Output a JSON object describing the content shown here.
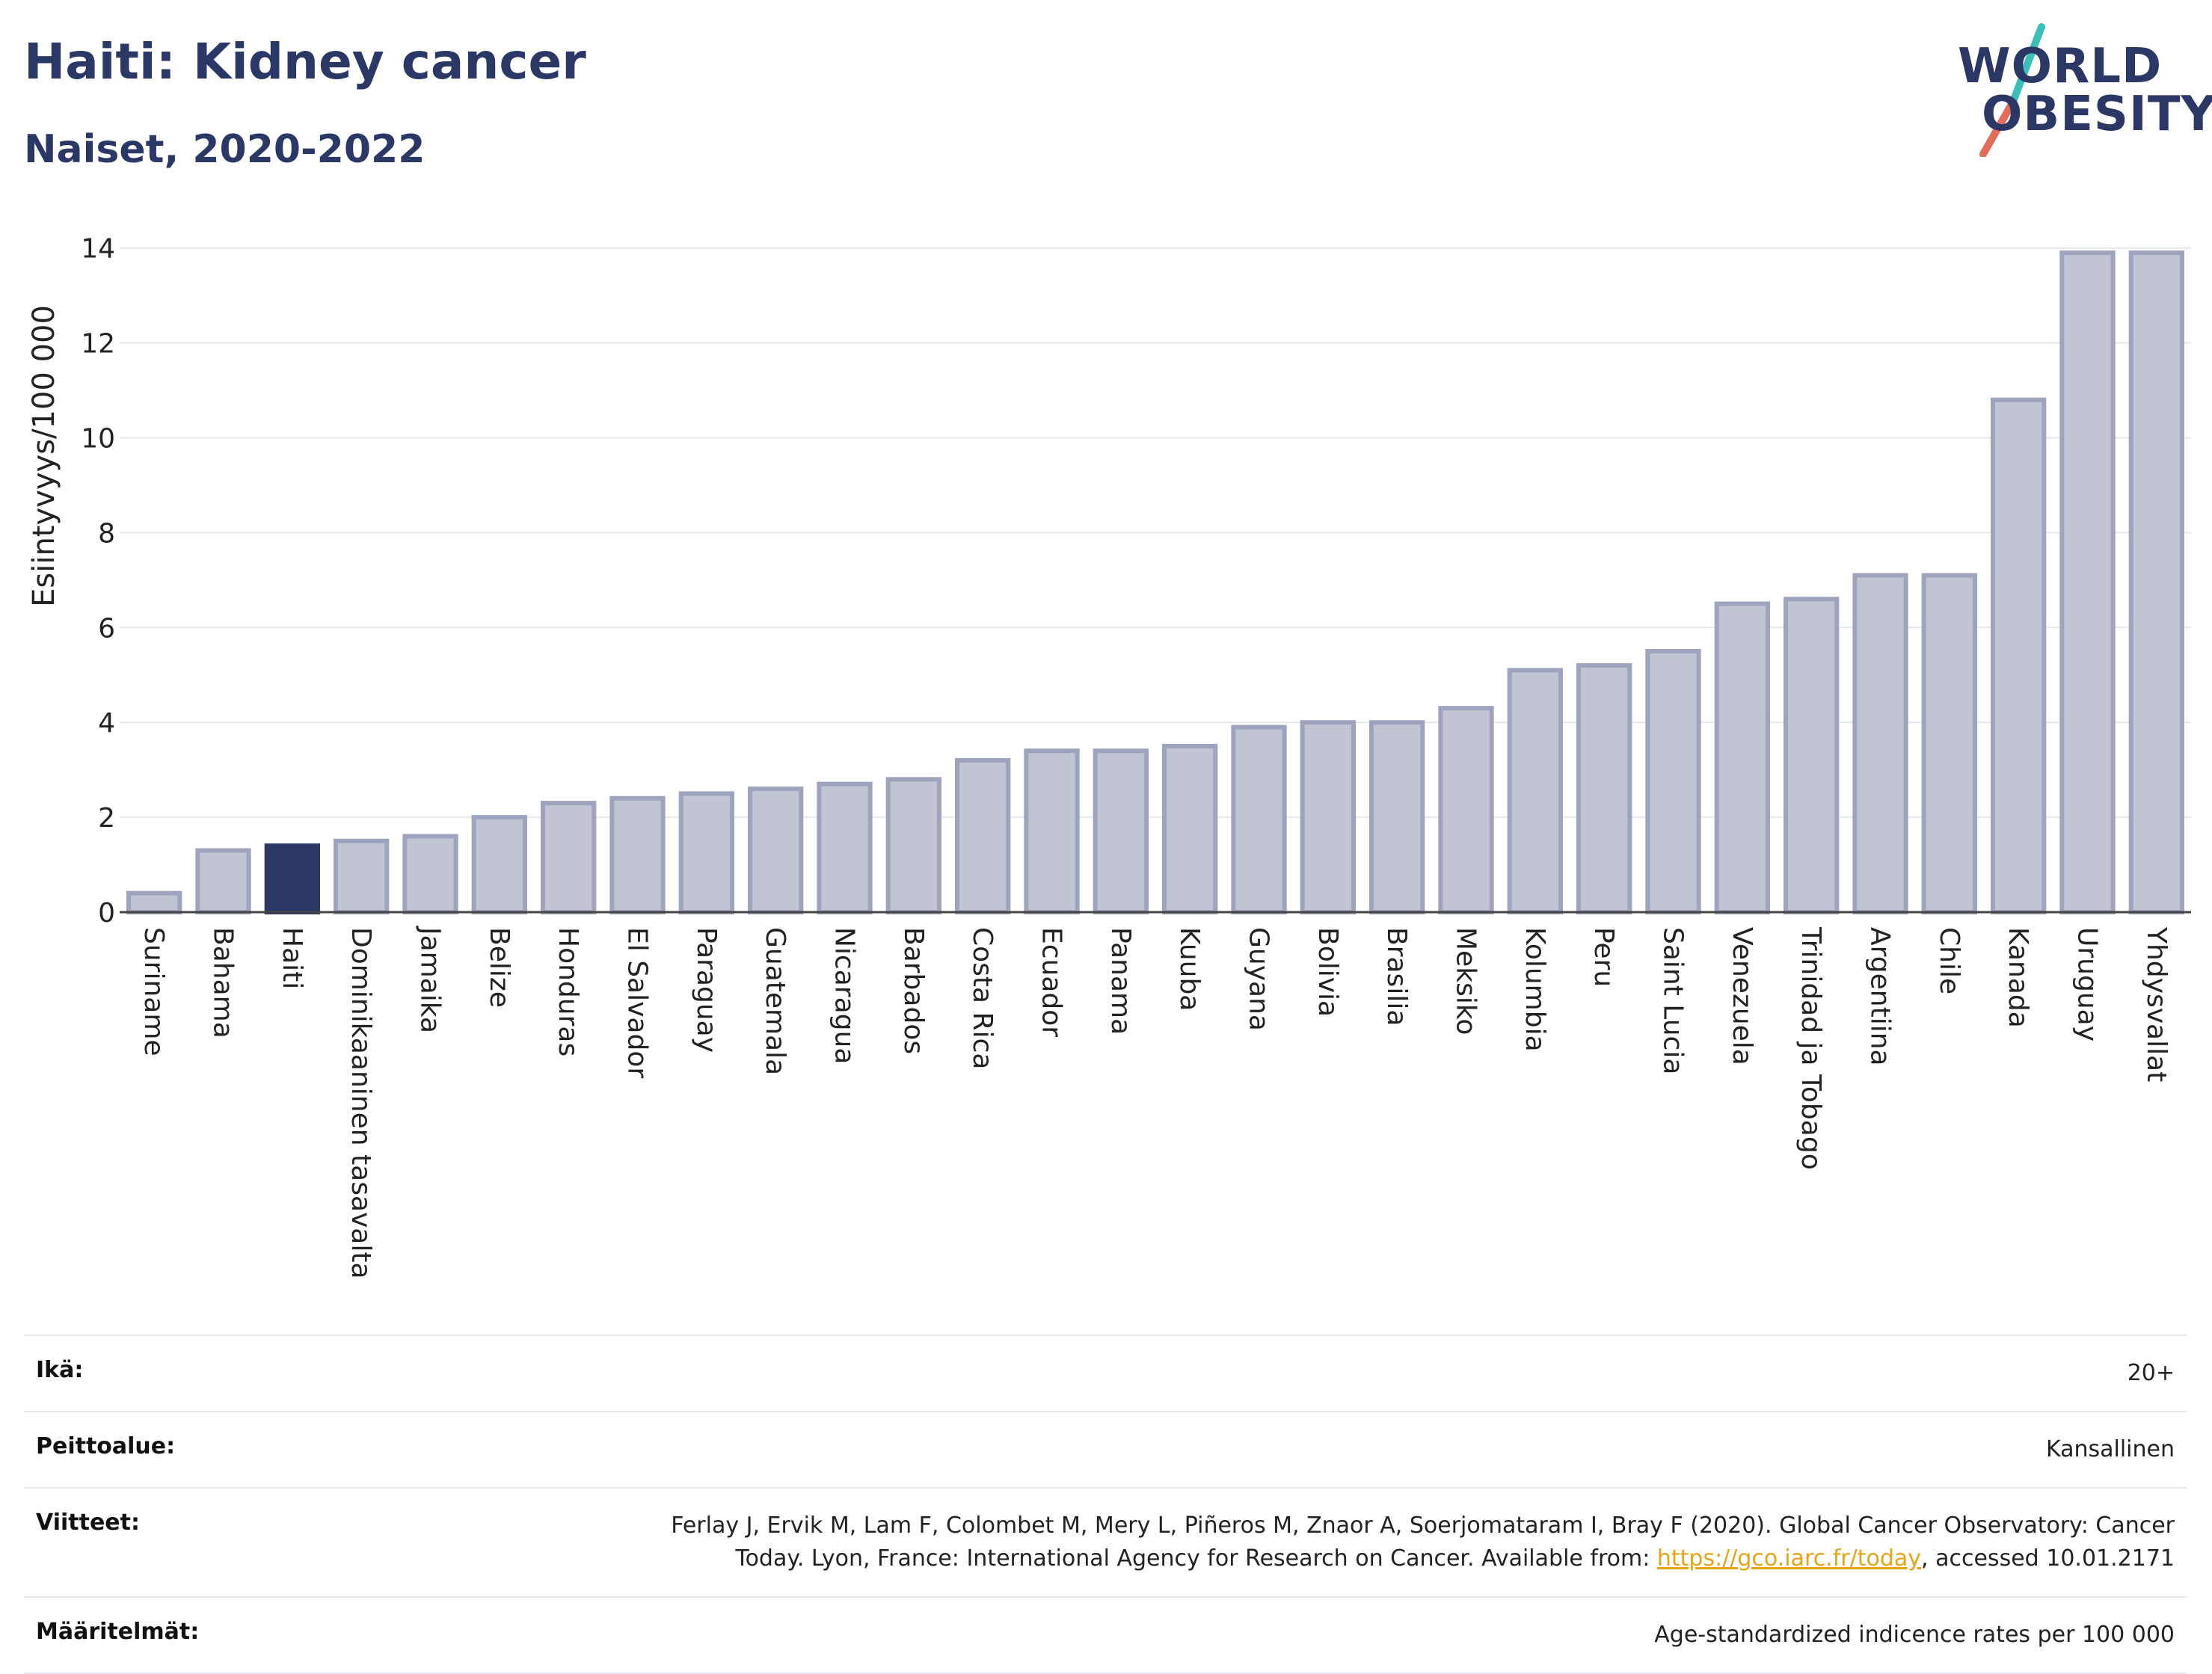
{
  "header": {
    "title": "Haiti: Kidney cancer",
    "subtitle": "Naiset, 2020-2022"
  },
  "logo": {
    "line1": "WORLD",
    "line2": "OBESITY",
    "colors": {
      "navy": "#2b3866",
      "teal": "#3bbfb8",
      "coral": "#e36b5a"
    }
  },
  "colors": {
    "highlight": "#2b3866",
    "bar": "#c0c4d3",
    "bar_stroke": "#9ea4bd",
    "grid": "#e6e8ef"
  },
  "chart_data": {
    "type": "bar",
    "ylabel": "Esiintyvyys/100 000",
    "ylim": [
      0,
      14.5
    ],
    "yticks": [
      0,
      2,
      4,
      6,
      8,
      10,
      12,
      14
    ],
    "grid": true,
    "highlight": "Haiti",
    "categories": [
      "Suriname",
      "Bahama",
      "Haiti",
      "Dominikaaninen tasavalta",
      "Jamaika",
      "Belize",
      "Honduras",
      "El Salvador",
      "Paraguay",
      "Guatemala",
      "Nicaragua",
      "Barbados",
      "Costa Rica",
      "Ecuador",
      "Panama",
      "Kuuba",
      "Guyana",
      "Bolivia",
      "Brasilia",
      "Meksiko",
      "Kolumbia",
      "Peru",
      "Saint Lucia",
      "Venezuela",
      "Trinidad ja Tobago",
      "Argentiina",
      "Chile",
      "Kanada",
      "Uruguay",
      "Yhdysvallat"
    ],
    "values": [
      0.4,
      1.3,
      1.4,
      1.5,
      1.6,
      2.0,
      2.3,
      2.4,
      2.5,
      2.6,
      2.7,
      2.8,
      3.2,
      3.4,
      3.4,
      3.5,
      3.9,
      4.0,
      4.0,
      4.3,
      5.1,
      5.2,
      5.5,
      6.5,
      6.6,
      7.1,
      7.1,
      10.8,
      13.9,
      13.9
    ]
  },
  "info": {
    "age_label": "Ikä:",
    "age_value": "20+",
    "coverage_label": "Peittoalue:",
    "coverage_value": "Kansallinen",
    "refs_label": "Viitteet:",
    "refs_line1": "Ferlay J, Ervik M, Lam F, Colombet M, Mery L, Piñeros M, Znaor A, Soerjomataram I, Bray F (2020). Global Cancer Observatory: Cancer",
    "refs_line2_pre": "Today. Lyon, France: International Agency for Research on Cancer. Available from: ",
    "refs_link": "https://gco.iarc.fr/today",
    "refs_line2_post": ", accessed 10.01.2171",
    "defs_label": "Määritelmät:",
    "defs_value": "Age-standardized indicence rates per 100 000"
  }
}
